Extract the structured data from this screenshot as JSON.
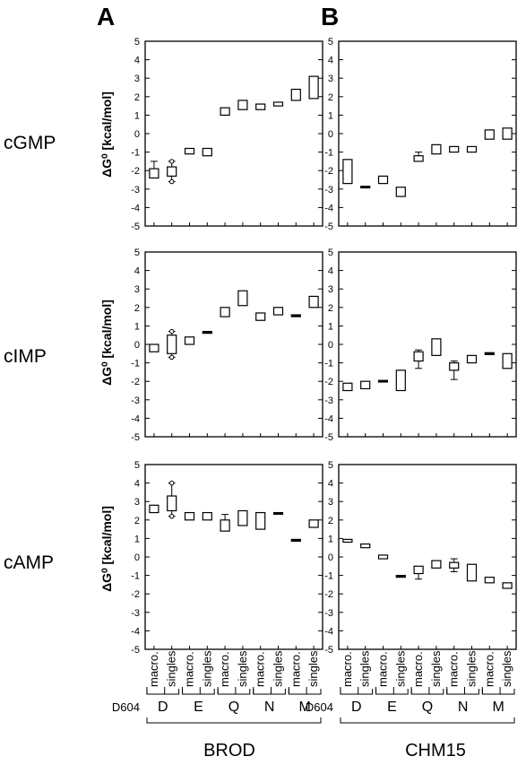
{
  "panel_letters": [
    "A",
    "B"
  ],
  "row_labels": [
    "cGMP",
    "cIMP",
    "cAMP"
  ],
  "y_label": "ΔG⁰ [kcal/mol]",
  "y_ticks": [
    "5",
    "4",
    "3",
    "2",
    "1",
    "0",
    "-1",
    "-2",
    "-3",
    "-4",
    "-5"
  ],
  "x_sub_labels": [
    "macro.",
    "singles"
  ],
  "x_groups": [
    "D",
    "E",
    "Q",
    "N",
    "M"
  ],
  "x_row_label": "D604",
  "column_titles": [
    "BROD",
    "CHM15"
  ],
  "colors": {
    "ink": "#000000",
    "background": "#ffffff"
  },
  "chart_data": [
    {
      "type": "box",
      "column": "BROD",
      "row": "cGMP",
      "ylim": [
        -5,
        5
      ],
      "categories": [
        "D macro.",
        "D singles",
        "E macro.",
        "E singles",
        "Q macro.",
        "Q singles",
        "N macro.",
        "N singles",
        "M macro.",
        "M singles"
      ],
      "boxes": [
        {
          "q1": -2.4,
          "q3": -1.9,
          "wlo": -2.4,
          "whi": -1.5,
          "out": []
        },
        {
          "q1": -2.3,
          "q3": -1.8,
          "wlo": -2.6,
          "whi": -1.5,
          "out": [
            -2.6,
            -1.5
          ]
        },
        {
          "q1": -1.1,
          "q3": -0.8,
          "wlo": -1.1,
          "whi": -0.8,
          "out": []
        },
        {
          "q1": -1.2,
          "q3": -0.8,
          "wlo": -1.2,
          "whi": -0.8,
          "out": []
        },
        {
          "q1": 1.0,
          "q3": 1.4,
          "wlo": 1.0,
          "whi": 1.4,
          "out": []
        },
        {
          "q1": 1.3,
          "q3": 1.8,
          "wlo": 1.3,
          "whi": 1.8,
          "out": []
        },
        {
          "q1": 1.3,
          "q3": 1.6,
          "wlo": 1.3,
          "whi": 1.6,
          "out": []
        },
        {
          "q1": 1.5,
          "q3": 1.7,
          "wlo": 1.5,
          "whi": 1.7,
          "out": []
        },
        {
          "q1": 1.8,
          "q3": 2.4,
          "wlo": 1.8,
          "whi": 2.4,
          "out": []
        },
        {
          "q1": 1.9,
          "q3": 3.1,
          "wlo": 1.9,
          "whi": 3.1,
          "out": []
        }
      ]
    },
    {
      "type": "box",
      "column": "CHM15",
      "row": "cGMP",
      "ylim": [
        -5,
        5
      ],
      "categories": [
        "D macro.",
        "D singles",
        "E macro.",
        "E singles",
        "Q macro.",
        "Q singles",
        "N macro.",
        "N singles",
        "M macro.",
        "M singles"
      ],
      "boxes": [
        {
          "q1": -2.7,
          "q3": -1.4,
          "wlo": -2.7,
          "whi": -1.4,
          "out": []
        },
        {
          "q1": -2.9,
          "q3": -2.85,
          "wlo": -2.9,
          "whi": -2.85,
          "out": []
        },
        {
          "q1": -2.7,
          "q3": -2.3,
          "wlo": -2.7,
          "whi": -2.3,
          "out": []
        },
        {
          "q1": -3.4,
          "q3": -2.9,
          "wlo": -3.4,
          "whi": -2.9,
          "out": []
        },
        {
          "q1": -1.5,
          "q3": -1.2,
          "wlo": -1.5,
          "whi": -1.0,
          "out": []
        },
        {
          "q1": -1.1,
          "q3": -0.6,
          "wlo": -1.1,
          "whi": -0.6,
          "out": []
        },
        {
          "q1": -1.0,
          "q3": -0.7,
          "wlo": -1.0,
          "whi": -0.7,
          "out": []
        },
        {
          "q1": -1.0,
          "q3": -0.7,
          "wlo": -1.0,
          "whi": -0.7,
          "out": []
        },
        {
          "q1": -0.3,
          "q3": 0.2,
          "wlo": -0.3,
          "whi": 0.2,
          "out": []
        },
        {
          "q1": -0.3,
          "q3": 0.3,
          "wlo": -0.3,
          "whi": 0.3,
          "out": []
        }
      ]
    },
    {
      "type": "box",
      "column": "BROD",
      "row": "cIMP",
      "ylim": [
        -5,
        5
      ],
      "categories": [
        "D macro.",
        "D singles",
        "E macro.",
        "E singles",
        "Q macro.",
        "Q singles",
        "N macro.",
        "N singles",
        "M macro.",
        "M singles"
      ],
      "boxes": [
        {
          "q1": -0.4,
          "q3": 0.0,
          "wlo": -0.4,
          "whi": 0.0,
          "out": []
        },
        {
          "q1": -0.5,
          "q3": 0.5,
          "wlo": -0.7,
          "whi": 0.7,
          "out": [
            -0.7,
            0.7
          ]
        },
        {
          "q1": 0.0,
          "q3": 0.4,
          "wlo": 0.0,
          "whi": 0.4,
          "out": []
        },
        {
          "q1": 0.6,
          "q3": 0.7,
          "wlo": 0.6,
          "whi": 0.7,
          "out": []
        },
        {
          "q1": 1.5,
          "q3": 2.0,
          "wlo": 1.5,
          "whi": 2.0,
          "out": []
        },
        {
          "q1": 2.1,
          "q3": 2.9,
          "wlo": 2.1,
          "whi": 2.9,
          "out": []
        },
        {
          "q1": 1.3,
          "q3": 1.7,
          "wlo": 1.3,
          "whi": 1.7,
          "out": []
        },
        {
          "q1": 1.6,
          "q3": 2.0,
          "wlo": 1.6,
          "whi": 2.0,
          "out": []
        },
        {
          "q1": 1.5,
          "q3": 1.6,
          "wlo": 1.5,
          "whi": 1.6,
          "out": []
        },
        {
          "q1": 2.0,
          "q3": 2.6,
          "wlo": 2.0,
          "whi": 2.6,
          "out": []
        }
      ]
    },
    {
      "type": "box",
      "column": "CHM15",
      "row": "cIMP",
      "ylim": [
        -5,
        5
      ],
      "categories": [
        "D macro.",
        "D singles",
        "E macro.",
        "E singles",
        "Q macro.",
        "Q singles",
        "N macro.",
        "N singles",
        "M macro.",
        "M singles"
      ],
      "boxes": [
        {
          "q1": -2.5,
          "q3": -2.1,
          "wlo": -2.5,
          "whi": -2.1,
          "out": []
        },
        {
          "q1": -2.4,
          "q3": -2.0,
          "wlo": -2.4,
          "whi": -2.0,
          "out": []
        },
        {
          "q1": -2.0,
          "q3": -1.95,
          "wlo": -2.0,
          "whi": -1.95,
          "out": []
        },
        {
          "q1": -2.5,
          "q3": -1.4,
          "wlo": -2.5,
          "whi": -1.4,
          "out": []
        },
        {
          "q1": -0.9,
          "q3": -0.4,
          "wlo": -1.3,
          "whi": -0.3,
          "out": []
        },
        {
          "q1": -0.6,
          "q3": 0.3,
          "wlo": -0.6,
          "whi": 0.3,
          "out": []
        },
        {
          "q1": -1.4,
          "q3": -1.0,
          "wlo": -1.9,
          "whi": -0.9,
          "out": []
        },
        {
          "q1": -1.0,
          "q3": -0.6,
          "wlo": -1.0,
          "whi": -0.6,
          "out": []
        },
        {
          "q1": -0.55,
          "q3": -0.45,
          "wlo": -0.55,
          "whi": -0.45,
          "out": []
        },
        {
          "q1": -1.3,
          "q3": -0.5,
          "wlo": -1.3,
          "whi": -0.5,
          "out": []
        }
      ]
    },
    {
      "type": "box",
      "column": "BROD",
      "row": "cAMP",
      "ylim": [
        -5,
        5
      ],
      "categories": [
        "D macro.",
        "D singles",
        "E macro.",
        "E singles",
        "Q macro.",
        "Q singles",
        "N macro.",
        "N singles",
        "M macro.",
        "M singles"
      ],
      "boxes": [
        {
          "q1": 2.4,
          "q3": 2.8,
          "wlo": 2.4,
          "whi": 2.8,
          "out": []
        },
        {
          "q1": 2.5,
          "q3": 3.3,
          "wlo": 2.2,
          "whi": 4.0,
          "out": [
            4.0,
            2.2
          ]
        },
        {
          "q1": 2.0,
          "q3": 2.4,
          "wlo": 2.0,
          "whi": 2.4,
          "out": []
        },
        {
          "q1": 2.0,
          "q3": 2.4,
          "wlo": 2.0,
          "whi": 2.4,
          "out": []
        },
        {
          "q1": 1.4,
          "q3": 2.0,
          "wlo": 1.4,
          "whi": 2.3,
          "out": []
        },
        {
          "q1": 1.7,
          "q3": 2.5,
          "wlo": 1.7,
          "whi": 2.5,
          "out": []
        },
        {
          "q1": 1.5,
          "q3": 2.4,
          "wlo": 1.5,
          "whi": 2.4,
          "out": []
        },
        {
          "q1": 2.35,
          "q3": 2.4,
          "wlo": 2.35,
          "whi": 2.4,
          "out": []
        },
        {
          "q1": 0.85,
          "q3": 0.95,
          "wlo": 0.85,
          "whi": 0.95,
          "out": []
        },
        {
          "q1": 1.6,
          "q3": 2.0,
          "wlo": 1.6,
          "whi": 2.0,
          "out": []
        }
      ]
    },
    {
      "type": "box",
      "column": "CHM15",
      "row": "cAMP",
      "ylim": [
        -5,
        5
      ],
      "categories": [
        "D macro.",
        "D singles",
        "E macro.",
        "E singles",
        "Q macro.",
        "Q singles",
        "N macro.",
        "N singles",
        "M macro.",
        "M singles"
      ],
      "boxes": [
        {
          "q1": 0.8,
          "q3": 0.95,
          "wlo": 0.8,
          "whi": 0.95,
          "out": []
        },
        {
          "q1": 0.5,
          "q3": 0.7,
          "wlo": 0.5,
          "whi": 0.7,
          "out": []
        },
        {
          "q1": -0.1,
          "q3": 0.1,
          "wlo": -0.1,
          "whi": 0.1,
          "out": []
        },
        {
          "q1": -1.1,
          "q3": -1.0,
          "wlo": -1.1,
          "whi": -1.0,
          "out": []
        },
        {
          "q1": -0.9,
          "q3": -0.5,
          "wlo": -1.2,
          "whi": -0.5,
          "out": []
        },
        {
          "q1": -0.6,
          "q3": -0.2,
          "wlo": -0.6,
          "whi": -0.2,
          "out": []
        },
        {
          "q1": -0.6,
          "q3": -0.3,
          "wlo": -0.8,
          "whi": -0.1,
          "out": []
        },
        {
          "q1": -1.3,
          "q3": -0.4,
          "wlo": -1.3,
          "whi": -0.4,
          "out": []
        },
        {
          "q1": -1.4,
          "q3": -1.1,
          "wlo": -1.4,
          "whi": -1.1,
          "out": []
        },
        {
          "q1": -1.7,
          "q3": -1.4,
          "wlo": -1.7,
          "whi": -1.4,
          "out": []
        }
      ]
    }
  ]
}
